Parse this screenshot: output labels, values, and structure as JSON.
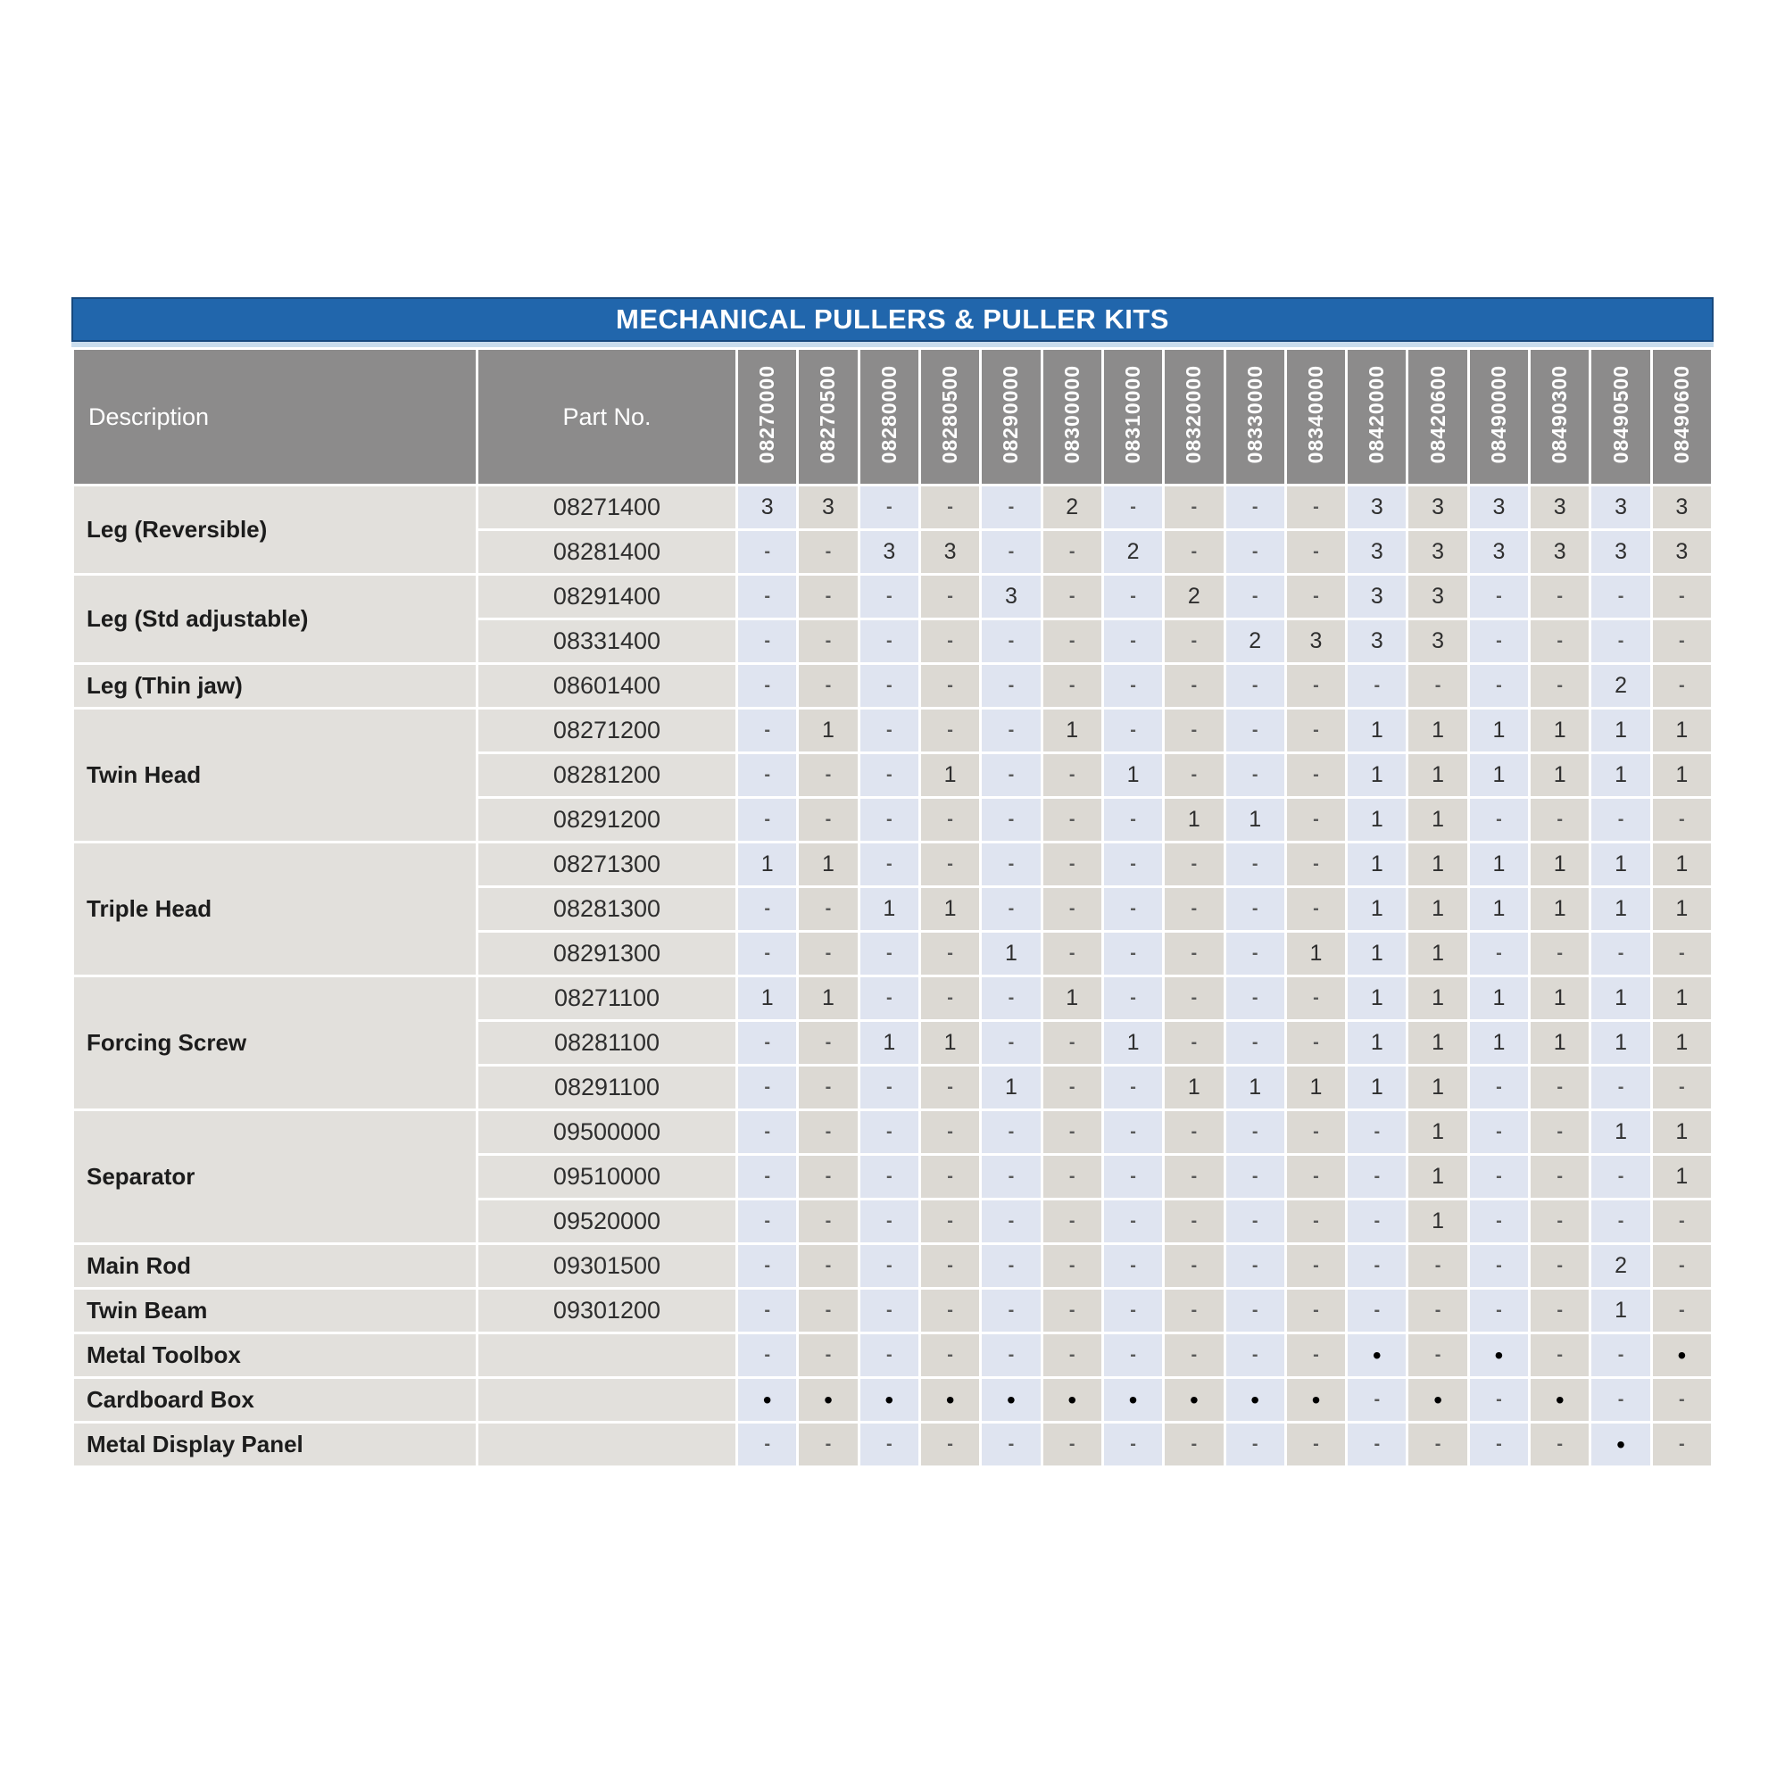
{
  "title": "MECHANICAL PULLERS & PULLER KITS",
  "colors": {
    "title_bg": "#2166ac",
    "title_border": "#17497e",
    "title_strip": "#cadded",
    "header_bg": "#8c8b8b",
    "row_label_bg": "#e2e0dc",
    "column_stripe_blue": "#dfe4f0",
    "column_stripe_tan": "#dcd9d3"
  },
  "table": {
    "description_header": "Description",
    "part_no_header": "Part No.",
    "kit_columns": [
      "08270000",
      "08270500",
      "08280000",
      "08280500",
      "08290000",
      "08300000",
      "08310000",
      "08320000",
      "08330000",
      "08340000",
      "08420000",
      "08420600",
      "08490000",
      "08490300",
      "08490500",
      "08490600"
    ],
    "groups": [
      {
        "description": "Leg (Reversible)",
        "parts": [
          {
            "part_no": "08271400",
            "values": [
              "3",
              "3",
              "-",
              "-",
              "-",
              "2",
              "-",
              "-",
              "-",
              "-",
              "3",
              "3",
              "3",
              "3",
              "3",
              "3"
            ]
          },
          {
            "part_no": "08281400",
            "values": [
              "-",
              "-",
              "3",
              "3",
              "-",
              "-",
              "2",
              "-",
              "-",
              "-",
              "3",
              "3",
              "3",
              "3",
              "3",
              "3"
            ]
          }
        ]
      },
      {
        "description": "Leg (Std adjustable)",
        "parts": [
          {
            "part_no": "08291400",
            "values": [
              "-",
              "-",
              "-",
              "-",
              "3",
              "-",
              "-",
              "2",
              "-",
              "-",
              "3",
              "3",
              "-",
              "-",
              "-",
              "-"
            ]
          },
          {
            "part_no": "08331400",
            "values": [
              "-",
              "-",
              "-",
              "-",
              "-",
              "-",
              "-",
              "-",
              "2",
              "3",
              "3",
              "3",
              "-",
              "-",
              "-",
              "-"
            ]
          }
        ]
      },
      {
        "description": "Leg (Thin jaw)",
        "parts": [
          {
            "part_no": "08601400",
            "values": [
              "-",
              "-",
              "-",
              "-",
              "-",
              "-",
              "-",
              "-",
              "-",
              "-",
              "-",
              "-",
              "-",
              "-",
              "2",
              "-"
            ]
          }
        ]
      },
      {
        "description": "Twin Head",
        "parts": [
          {
            "part_no": "08271200",
            "values": [
              "-",
              "1",
              "-",
              "-",
              "-",
              "1",
              "-",
              "-",
              "-",
              "-",
              "1",
              "1",
              "1",
              "1",
              "1",
              "1"
            ]
          },
          {
            "part_no": "08281200",
            "values": [
              "-",
              "-",
              "-",
              "1",
              "-",
              "-",
              "1",
              "-",
              "-",
              "-",
              "1",
              "1",
              "1",
              "1",
              "1",
              "1"
            ]
          },
          {
            "part_no": "08291200",
            "values": [
              "-",
              "-",
              "-",
              "-",
              "-",
              "-",
              "-",
              "1",
              "1",
              "-",
              "1",
              "1",
              "-",
              "-",
              "-",
              "-"
            ]
          }
        ]
      },
      {
        "description": "Triple Head",
        "parts": [
          {
            "part_no": "08271300",
            "values": [
              "1",
              "1",
              "-",
              "-",
              "-",
              "-",
              "-",
              "-",
              "-",
              "-",
              "1",
              "1",
              "1",
              "1",
              "1",
              "1"
            ]
          },
          {
            "part_no": "08281300",
            "values": [
              "-",
              "-",
              "1",
              "1",
              "-",
              "-",
              "-",
              "-",
              "-",
              "-",
              "1",
              "1",
              "1",
              "1",
              "1",
              "1"
            ]
          },
          {
            "part_no": "08291300",
            "values": [
              "-",
              "-",
              "-",
              "-",
              "1",
              "-",
              "-",
              "-",
              "-",
              "1",
              "1",
              "1",
              "-",
              "-",
              "-",
              "-"
            ]
          }
        ]
      },
      {
        "description": "Forcing Screw",
        "parts": [
          {
            "part_no": "08271100",
            "values": [
              "1",
              "1",
              "-",
              "-",
              "-",
              "1",
              "-",
              "-",
              "-",
              "-",
              "1",
              "1",
              "1",
              "1",
              "1",
              "1"
            ]
          },
          {
            "part_no": "08281100",
            "values": [
              "-",
              "-",
              "1",
              "1",
              "-",
              "-",
              "1",
              "-",
              "-",
              "-",
              "1",
              "1",
              "1",
              "1",
              "1",
              "1"
            ]
          },
          {
            "part_no": "08291100",
            "values": [
              "-",
              "-",
              "-",
              "-",
              "1",
              "-",
              "-",
              "1",
              "1",
              "1",
              "1",
              "1",
              "-",
              "-",
              "-",
              "-"
            ]
          }
        ]
      },
      {
        "description": "Separator",
        "parts": [
          {
            "part_no": "09500000",
            "values": [
              "-",
              "-",
              "-",
              "-",
              "-",
              "-",
              "-",
              "-",
              "-",
              "-",
              "-",
              "1",
              "-",
              "-",
              "1",
              "1"
            ]
          },
          {
            "part_no": "09510000",
            "values": [
              "-",
              "-",
              "-",
              "-",
              "-",
              "-",
              "-",
              "-",
              "-",
              "-",
              "-",
              "1",
              "-",
              "-",
              "-",
              "1"
            ]
          },
          {
            "part_no": "09520000",
            "values": [
              "-",
              "-",
              "-",
              "-",
              "-",
              "-",
              "-",
              "-",
              "-",
              "-",
              "-",
              "1",
              "-",
              "-",
              "-",
              "-"
            ]
          }
        ]
      },
      {
        "description": "Main Rod",
        "parts": [
          {
            "part_no": "09301500",
            "values": [
              "-",
              "-",
              "-",
              "-",
              "-",
              "-",
              "-",
              "-",
              "-",
              "-",
              "-",
              "-",
              "-",
              "-",
              "2",
              "-"
            ]
          }
        ]
      },
      {
        "description": "Twin Beam",
        "parts": [
          {
            "part_no": "09301200",
            "values": [
              "-",
              "-",
              "-",
              "-",
              "-",
              "-",
              "-",
              "-",
              "-",
              "-",
              "-",
              "-",
              "-",
              "-",
              "1",
              "-"
            ]
          }
        ]
      },
      {
        "description": "Metal Toolbox",
        "parts": [
          {
            "part_no": "",
            "values": [
              "-",
              "-",
              "-",
              "-",
              "-",
              "-",
              "-",
              "-",
              "-",
              "-",
              "•",
              "-",
              "•",
              "-",
              "-",
              "•"
            ]
          }
        ]
      },
      {
        "description": "Cardboard Box",
        "parts": [
          {
            "part_no": "",
            "values": [
              "•",
              "•",
              "•",
              "•",
              "•",
              "•",
              "•",
              "•",
              "•",
              "•",
              "-",
              "•",
              "-",
              "•",
              "-",
              "-"
            ]
          }
        ]
      },
      {
        "description": "Metal Display Panel",
        "parts": [
          {
            "part_no": "",
            "values": [
              "-",
              "-",
              "-",
              "-",
              "-",
              "-",
              "-",
              "-",
              "-",
              "-",
              "-",
              "-",
              "-",
              "-",
              "•",
              "-"
            ]
          }
        ]
      }
    ]
  }
}
